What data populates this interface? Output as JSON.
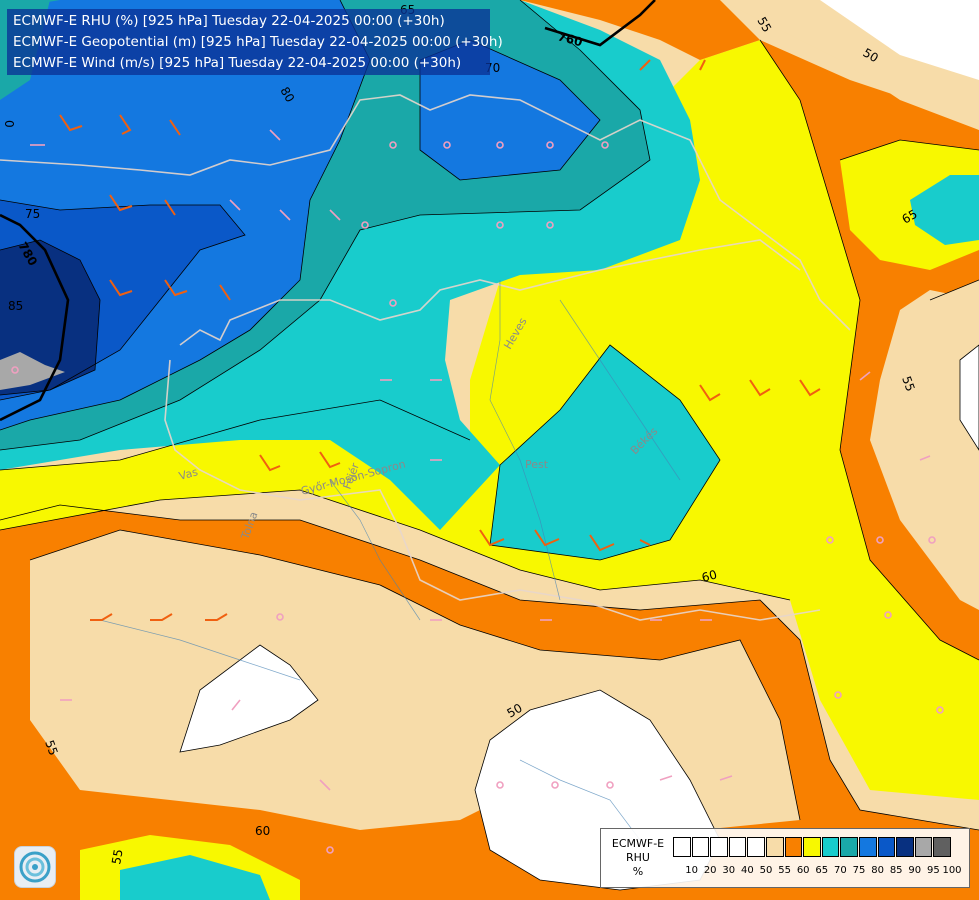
{
  "header": {
    "line1": "ECMWF-E RHU (%) [925 hPa] Tuesday 22-04-2025 00:00 (+30h)",
    "line2": "ECMWF-E Geopotential (m) [925 hPa] Tuesday 22-04-2025 00:00 (+30h)",
    "line3": "ECMWF-E Wind (m/s) [925 hPa] Tuesday 22-04-2025 00:00 (+30h)"
  },
  "legend": {
    "title_lines": [
      "ECMWF-E",
      "RHU",
      "%"
    ],
    "ticks": [
      "10",
      "20",
      "30",
      "40",
      "50",
      "55",
      "60",
      "65",
      "70",
      "75",
      "80",
      "85",
      "90",
      "95",
      "100"
    ],
    "colors": [
      "#ffffff",
      "#ffffff",
      "#ffffff",
      "#ffffff",
      "#ffffff",
      "#f7dca9",
      "#f88000",
      "#f8f800",
      "#18cccc",
      "#1aa8a8",
      "#1478e0",
      "#0a58c8",
      "#083080",
      "#a8a8a8",
      "#606060"
    ]
  },
  "contour_labels": {
    "geo_top": "760",
    "geo_left": "780",
    "rh_85": "85",
    "rh_75": "75",
    "rh_80": "80",
    "rh_70": "70",
    "rh_55_top": "55",
    "rh_50_top": "50",
    "rh_65_right": "65",
    "rh_55_right": "55",
    "rh_60_mid": "60",
    "rh_50_mid": "50",
    "rh_55_left": "55",
    "rh_60_bottom": "60",
    "rh_55_bottom": "55",
    "rh_0_left": "0",
    "rh_65_top": "65"
  },
  "places": [
    "Vas",
    "Győr-Moson-Sopron",
    "Tolna",
    "Pest",
    "Heves",
    "Békés",
    "Fejér"
  ]
}
